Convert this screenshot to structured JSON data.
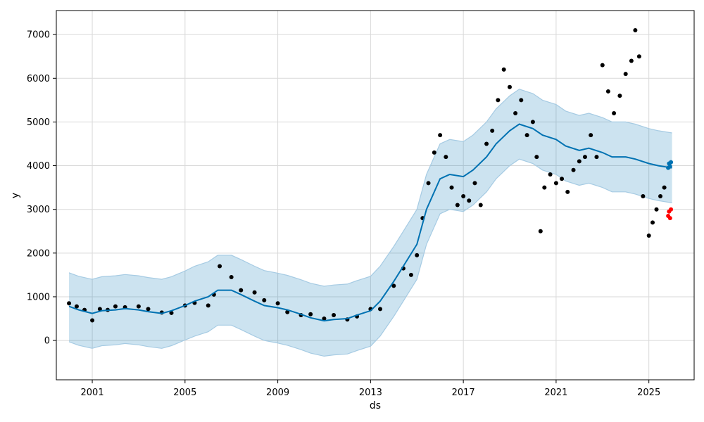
{
  "chart_data": {
    "type": "scatter",
    "title": "",
    "xlabel": "ds",
    "ylabel": "y",
    "xlim": [
      "1999-06-15",
      "2026-12-15"
    ],
    "ylim": [
      -900,
      7550
    ],
    "x_ticks": [
      "2001",
      "2005",
      "2009",
      "2013",
      "2017",
      "2021",
      "2025"
    ],
    "y_ticks": [
      0,
      1000,
      2000,
      3000,
      4000,
      5000,
      6000,
      7000
    ],
    "grid": true,
    "legend": "none",
    "colors": {
      "actual": "#000000",
      "forecast": "#0072B2",
      "interval": "#a6cbe3",
      "test": "#ff0000"
    },
    "series": [
      {
        "kind": "observed_points",
        "x": [
          "2000-01-01",
          "2000-05-01",
          "2000-09-01",
          "2001-01-01",
          "2001-05-01",
          "2001-09-01",
          "2002-01-01",
          "2002-06-01",
          "2003-01-01",
          "2003-06-01",
          "2004-01-01",
          "2004-06-01",
          "2005-01-01",
          "2005-06-01",
          "2006-01-01",
          "2006-04-01",
          "2006-07-01",
          "2007-01-01",
          "2007-06-01",
          "2008-01-01",
          "2008-06-01",
          "2009-01-01",
          "2009-06-01",
          "2010-01-01",
          "2010-06-01",
          "2011-01-01",
          "2011-06-01",
          "2012-01-01",
          "2012-06-01",
          "2013-01-01",
          "2013-06-01",
          "2014-01-01",
          "2014-06-01",
          "2014-10-01",
          "2015-01-01",
          "2015-04-01",
          "2015-07-01",
          "2015-10-01",
          "2016-01-01",
          "2016-04-01",
          "2016-07-01",
          "2016-10-01",
          "2017-01-01",
          "2017-04-01",
          "2017-07-01",
          "2017-10-01",
          "2018-01-01",
          "2018-04-01",
          "2018-07-01",
          "2018-10-01",
          "2019-01-01",
          "2019-04-01",
          "2019-07-01",
          "2019-10-01",
          "2020-01-01",
          "2020-03-01",
          "2020-05-01",
          "2020-07-01",
          "2020-10-01",
          "2021-01-01",
          "2021-04-01",
          "2021-07-01",
          "2021-10-01",
          "2022-01-01",
          "2022-04-01",
          "2022-07-01",
          "2022-10-01",
          "2023-01-01",
          "2023-04-01",
          "2023-07-01",
          "2023-10-01",
          "2024-01-01",
          "2024-04-01",
          "2024-06-01",
          "2024-08-01",
          "2024-10-01",
          "2025-01-01",
          "2025-03-01",
          "2025-05-01",
          "2025-07-01",
          "2025-09-01"
        ],
        "y": [
          850,
          780,
          700,
          460,
          720,
          700,
          780,
          760,
          780,
          720,
          640,
          630,
          800,
          860,
          800,
          1050,
          1700,
          1450,
          1150,
          1100,
          920,
          850,
          650,
          580,
          600,
          500,
          580,
          480,
          550,
          720,
          720,
          1250,
          1650,
          1500,
          1950,
          2800,
          3600,
          4300,
          4700,
          4200,
          3500,
          3100,
          3300,
          3200,
          3600,
          3100,
          4500,
          4800,
          5500,
          6200,
          5800,
          5200,
          5500,
          4700,
          5000,
          4200,
          2500,
          3500,
          3800,
          3600,
          3700,
          3400,
          3900,
          4100,
          4200,
          4700,
          4200,
          6300,
          5700,
          5200,
          5600,
          6100,
          6400,
          7100,
          6500,
          3300,
          2400,
          2700,
          3000,
          3300,
          3500
        ],
        "marker": "dot"
      },
      {
        "kind": "forecast_line",
        "x": [
          "2000-01-01",
          "2000-06-01",
          "2001-01-01",
          "2001-06-01",
          "2002-01-01",
          "2002-06-01",
          "2003-01-01",
          "2003-06-01",
          "2004-01-01",
          "2004-06-01",
          "2005-01-01",
          "2005-06-01",
          "2006-01-01",
          "2006-06-01",
          "2007-01-01",
          "2007-06-01",
          "2008-01-01",
          "2008-06-01",
          "2009-01-01",
          "2009-06-01",
          "2010-01-01",
          "2010-06-01",
          "2011-01-01",
          "2011-06-01",
          "2012-01-01",
          "2012-06-01",
          "2013-01-01",
          "2013-06-01",
          "2014-01-01",
          "2014-06-01",
          "2015-01-01",
          "2015-06-01",
          "2016-01-01",
          "2016-06-01",
          "2017-01-01",
          "2017-06-01",
          "2018-01-01",
          "2018-06-01",
          "2019-01-01",
          "2019-06-01",
          "2020-01-01",
          "2020-06-01",
          "2021-01-01",
          "2021-06-01",
          "2022-01-01",
          "2022-06-01",
          "2023-01-01",
          "2023-06-01",
          "2024-01-01",
          "2024-06-01",
          "2025-01-01",
          "2025-06-01",
          "2026-01-01"
        ],
        "y": [
          780,
          700,
          620,
          680,
          700,
          730,
          700,
          660,
          620,
          680,
          800,
          900,
          1000,
          1150,
          1150,
          1050,
          900,
          800,
          750,
          700,
          600,
          520,
          450,
          480,
          500,
          580,
          680,
          900,
          1350,
          1700,
          2200,
          3000,
          3700,
          3800,
          3750,
          3900,
          4200,
          4500,
          4800,
          4950,
          4850,
          4700,
          4600,
          4450,
          4350,
          4400,
          4300,
          4200,
          4200,
          4150,
          4050,
          4000,
          3950
        ]
      },
      {
        "kind": "interval_upper",
        "x": [
          "2000-01-01",
          "2000-06-01",
          "2001-01-01",
          "2001-06-01",
          "2002-01-01",
          "2002-06-01",
          "2003-01-01",
          "2003-06-01",
          "2004-01-01",
          "2004-06-01",
          "2005-01-01",
          "2005-06-01",
          "2006-01-01",
          "2006-06-01",
          "2007-01-01",
          "2007-06-01",
          "2008-01-01",
          "2008-06-01",
          "2009-01-01",
          "2009-06-01",
          "2010-01-01",
          "2010-06-01",
          "2011-01-01",
          "2011-06-01",
          "2012-01-01",
          "2012-06-01",
          "2013-01-01",
          "2013-06-01",
          "2014-01-01",
          "2014-06-01",
          "2015-01-01",
          "2015-06-01",
          "2016-01-01",
          "2016-06-01",
          "2017-01-01",
          "2017-06-01",
          "2018-01-01",
          "2018-06-01",
          "2019-01-01",
          "2019-06-01",
          "2020-01-01",
          "2020-06-01",
          "2021-01-01",
          "2021-06-01",
          "2022-01-01",
          "2022-06-01",
          "2023-01-01",
          "2023-06-01",
          "2024-01-01",
          "2024-06-01",
          "2025-01-01",
          "2025-06-01",
          "2026-01-01"
        ],
        "y": [
          1550,
          1470,
          1400,
          1460,
          1480,
          1510,
          1480,
          1440,
          1400,
          1460,
          1590,
          1700,
          1800,
          1950,
          1950,
          1850,
          1700,
          1600,
          1540,
          1490,
          1390,
          1310,
          1240,
          1270,
          1290,
          1370,
          1470,
          1700,
          2150,
          2500,
          3000,
          3800,
          4500,
          4600,
          4550,
          4700,
          5000,
          5300,
          5600,
          5750,
          5650,
          5500,
          5400,
          5250,
          5150,
          5200,
          5100,
          5000,
          5000,
          4950,
          4850,
          4800,
          4750
        ]
      },
      {
        "kind": "interval_lower",
        "x": [
          "2000-01-01",
          "2000-06-01",
          "2001-01-01",
          "2001-06-01",
          "2002-01-01",
          "2002-06-01",
          "2003-01-01",
          "2003-06-01",
          "2004-01-01",
          "2004-06-01",
          "2005-01-01",
          "2005-06-01",
          "2006-01-01",
          "2006-06-01",
          "2007-01-01",
          "2007-06-01",
          "2008-01-01",
          "2008-06-01",
          "2009-01-01",
          "2009-06-01",
          "2010-01-01",
          "2010-06-01",
          "2011-01-01",
          "2011-06-01",
          "2012-01-01",
          "2012-06-01",
          "2013-01-01",
          "2013-06-01",
          "2014-01-01",
          "2014-06-01",
          "2015-01-01",
          "2015-06-01",
          "2016-01-01",
          "2016-06-01",
          "2017-01-01",
          "2017-06-01",
          "2018-01-01",
          "2018-06-01",
          "2019-01-01",
          "2019-06-01",
          "2020-01-01",
          "2020-06-01",
          "2021-01-01",
          "2021-06-01",
          "2022-01-01",
          "2022-06-01",
          "2023-01-01",
          "2023-06-01",
          "2024-01-01",
          "2024-06-01",
          "2025-01-01",
          "2025-06-01",
          "2026-01-01"
        ],
        "y": [
          -30,
          -110,
          -180,
          -120,
          -100,
          -70,
          -100,
          -140,
          -180,
          -120,
          10,
          100,
          200,
          350,
          350,
          250,
          100,
          0,
          -60,
          -110,
          -210,
          -290,
          -360,
          -330,
          -310,
          -230,
          -130,
          100,
          550,
          900,
          1400,
          2200,
          2900,
          3000,
          2950,
          3100,
          3400,
          3700,
          4000,
          4150,
          4050,
          3900,
          3800,
          3650,
          3550,
          3600,
          3500,
          3400,
          3400,
          3350,
          3250,
          3200,
          3150
        ]
      },
      {
        "kind": "test_points",
        "x": [
          "2025-11-01",
          "2025-11-15",
          "2025-12-01",
          "2025-12-15"
        ],
        "y": [
          2850,
          2950,
          2800,
          3000
        ],
        "marker": "dot"
      },
      {
        "kind": "forecast_test_points",
        "x": [
          "2025-11-01",
          "2025-11-15",
          "2025-12-01",
          "2025-12-15"
        ],
        "y": [
          3950,
          4050,
          3980,
          4080
        ],
        "marker": "dot"
      }
    ]
  }
}
